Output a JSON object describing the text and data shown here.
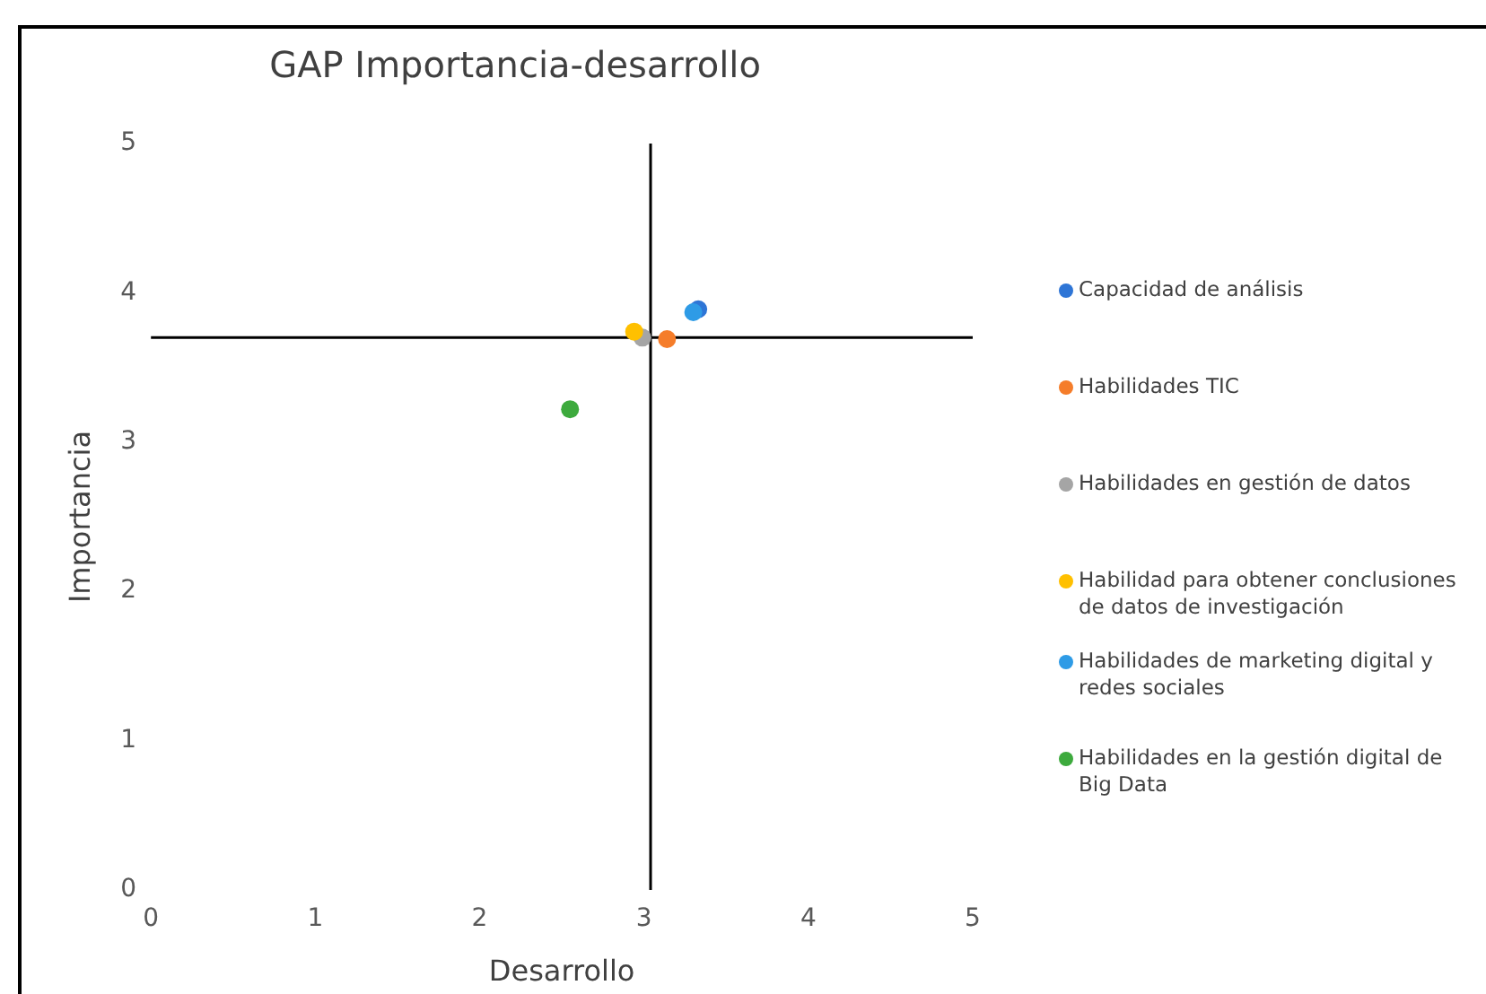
{
  "chart_data": {
    "type": "scatter",
    "title": "GAP Importancia-desarrollo",
    "xlabel": "Desarrollo",
    "ylabel": "Importancia",
    "xlim": [
      0,
      5
    ],
    "ylim": [
      0,
      5
    ],
    "xticks": [
      0,
      1,
      2,
      3,
      4,
      5
    ],
    "yticks": [
      0,
      1,
      2,
      3,
      4,
      5
    ],
    "grid": false,
    "legend": "right",
    "marker": "circle",
    "ref_lines": [
      {
        "axis": "x",
        "value": 3.04,
        "color": "#000000"
      },
      {
        "axis": "y",
        "value": 3.7,
        "color": "#000000"
      }
    ],
    "series": [
      {
        "name": "Capacidad de análisis",
        "color": "#2e75d6",
        "x": [
          3.33
        ],
        "values": [
          3.89
        ]
      },
      {
        "name": "Habilidades TIC",
        "color": "#f57d2a",
        "x": [
          3.14
        ],
        "values": [
          3.69
        ]
      },
      {
        "name": "Habilidades en gestión de datos",
        "color": "#a5a5a5",
        "x": [
          2.99
        ],
        "values": [
          3.7
        ]
      },
      {
        "name": "Habilidad para obtener conclusiones de datos de investigación",
        "color": "#ffc000",
        "x": [
          2.94
        ],
        "values": [
          3.74
        ]
      },
      {
        "name": "Habilidades de marketing digital y redes sociales",
        "color": "#2e9be6",
        "x": [
          3.3
        ],
        "values": [
          3.87
        ]
      },
      {
        "name": "Habilidades en la gestión digital de Big Data",
        "color": "#3daa3d",
        "x": [
          2.55
        ],
        "values": [
          3.22
        ]
      }
    ]
  }
}
